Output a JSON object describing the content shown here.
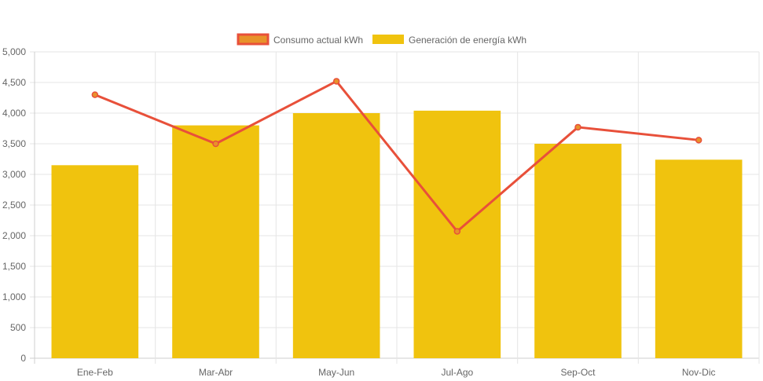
{
  "chart_data": {
    "type": "bar",
    "categories": [
      "Ene-Feb",
      "Mar-Abr",
      "May-Jun",
      "Jul-Ago",
      "Sep-Oct",
      "Nov-Dic"
    ],
    "ylim": [
      0,
      5000
    ],
    "y_ticks": [
      "0",
      "500",
      "1,000",
      "1,500",
      "2,000",
      "2,500",
      "3,000",
      "3,500",
      "4,000",
      "4,500",
      "5,000"
    ],
    "grid": true,
    "legend_position": "top",
    "series": [
      {
        "name": "Consumo actual kWh",
        "kind": "line",
        "color": "#e8503a",
        "fill_color": "#e8922a",
        "values": [
          4300,
          3500,
          4520,
          2070,
          3770,
          3560
        ]
      },
      {
        "name": "Generación de energía kWh",
        "kind": "bar",
        "color": "#f0c30e",
        "values": [
          3150,
          3800,
          4000,
          4040,
          3500,
          3240
        ]
      }
    ]
  }
}
